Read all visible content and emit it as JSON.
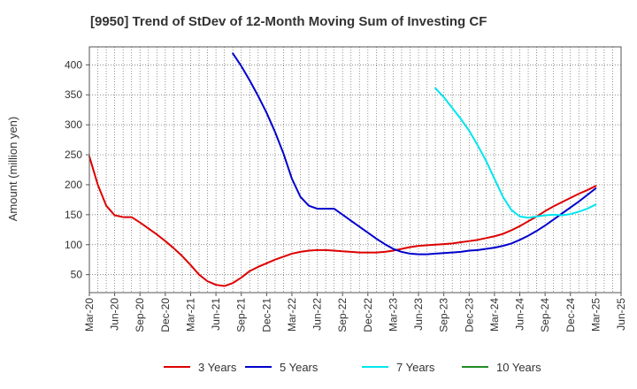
{
  "chart_data": {
    "type": "line",
    "title": "[9950]  Trend of StDev of 12-Month Moving Sum of Investing CF",
    "xlabel": "",
    "ylabel": "Amount (million yen)",
    "ylim": [
      20,
      430
    ],
    "yticks": [
      50,
      100,
      150,
      200,
      250,
      300,
      350,
      400
    ],
    "xticks": [
      "Mar-20",
      "Jun-20",
      "Sep-20",
      "Dec-20",
      "Mar-21",
      "Jun-21",
      "Sep-21",
      "Dec-21",
      "Mar-22",
      "Jun-22",
      "Sep-22",
      "Dec-22",
      "Mar-23",
      "Jun-23",
      "Sep-23",
      "Dec-23",
      "Mar-24",
      "Jun-24",
      "Sep-24",
      "Dec-24",
      "Mar-25",
      "Jun-25"
    ],
    "grid": true,
    "legend_position": "bottom",
    "colors": {
      "3 Years": "#dd0000",
      "5 Years": "#0000cc",
      "7 Years": "#00e5ee",
      "10 Years": "#228b22"
    },
    "series": [
      {
        "name": "3 Years",
        "color": "#dd0000",
        "x": [
          "Mar-20",
          "Apr-20",
          "May-20",
          "Jun-20",
          "Jul-20",
          "Aug-20",
          "Sep-20",
          "Oct-20",
          "Nov-20",
          "Dec-20",
          "Jan-21",
          "Feb-21",
          "Mar-21",
          "Apr-21",
          "May-21",
          "Jun-21",
          "Jul-21",
          "Aug-21",
          "Sep-21",
          "Oct-21",
          "Nov-21",
          "Dec-21",
          "Jan-22",
          "Feb-22",
          "Mar-22",
          "Apr-22",
          "May-22",
          "Jun-22",
          "Jul-22",
          "Aug-22",
          "Sep-22",
          "Oct-22",
          "Nov-22",
          "Dec-22",
          "Jan-23",
          "Feb-23",
          "Mar-23",
          "Apr-23",
          "May-23",
          "Jun-23",
          "Jul-23",
          "Aug-23",
          "Sep-23",
          "Oct-23",
          "Nov-23",
          "Dec-23",
          "Jan-24",
          "Feb-24",
          "Mar-24",
          "Apr-24",
          "May-24",
          "Jun-24",
          "Jul-24",
          "Aug-24",
          "Sep-24",
          "Oct-24",
          "Nov-24",
          "Dec-24",
          "Jan-25",
          "Feb-25",
          "Mar-25"
        ],
        "values": [
          247,
          200,
          165,
          149,
          146,
          146,
          137,
          127,
          117,
          106,
          94,
          81,
          66,
          50,
          39,
          33,
          31,
          36,
          45,
          56,
          63,
          69,
          75,
          80,
          85,
          88,
          90,
          91,
          91,
          90,
          89,
          88,
          87,
          87,
          87,
          88,
          90,
          93,
          96,
          98,
          99,
          100,
          101,
          102,
          104,
          106,
          108,
          111,
          114,
          118,
          124,
          131,
          139,
          147,
          156,
          164,
          171,
          178,
          185,
          191,
          198
        ]
      },
      {
        "name": "5 Years",
        "color": "#0000cc",
        "x": [
          "Aug-21",
          "Sep-21",
          "Oct-21",
          "Nov-21",
          "Dec-21",
          "Jan-22",
          "Feb-22",
          "Mar-22",
          "Apr-22",
          "May-22",
          "Jun-22",
          "Jul-22",
          "Aug-22",
          "Sep-22",
          "Oct-22",
          "Nov-22",
          "Dec-22",
          "Jan-23",
          "Feb-23",
          "Mar-23",
          "Apr-23",
          "May-23",
          "Jun-23",
          "Jul-23",
          "Aug-23",
          "Sep-23",
          "Oct-23",
          "Nov-23",
          "Dec-23",
          "Jan-24",
          "Feb-24",
          "Mar-24",
          "Apr-24",
          "May-24",
          "Jun-24",
          "Jul-24",
          "Aug-24",
          "Sep-24",
          "Oct-24",
          "Nov-24",
          "Dec-24",
          "Jan-25",
          "Feb-25",
          "Mar-25"
        ],
        "values": [
          419,
          398,
          374,
          348,
          320,
          288,
          252,
          210,
          180,
          165,
          160,
          160,
          160,
          150,
          140,
          130,
          120,
          110,
          101,
          93,
          88,
          85,
          84,
          84,
          85,
          86,
          87,
          88,
          90,
          91,
          93,
          95,
          98,
          102,
          108,
          115,
          123,
          132,
          142,
          152,
          162,
          172,
          183,
          194
        ]
      },
      {
        "name": "7 Years",
        "color": "#00e5ee",
        "x": [
          "Aug-23",
          "Sep-23",
          "Oct-23",
          "Nov-23",
          "Dec-23",
          "Jan-24",
          "Feb-24",
          "Mar-24",
          "Apr-24",
          "May-24",
          "Jun-24",
          "Jul-24",
          "Aug-24",
          "Sep-24",
          "Oct-24",
          "Nov-24",
          "Dec-24",
          "Jan-25",
          "Feb-25",
          "Mar-25"
        ],
        "values": [
          361,
          346,
          328,
          310,
          290,
          266,
          240,
          210,
          180,
          158,
          147,
          145,
          147,
          149,
          150,
          149,
          151,
          155,
          160,
          167
        ]
      },
      {
        "name": "10 Years",
        "color": "#228b22",
        "x": [],
        "values": []
      }
    ]
  }
}
